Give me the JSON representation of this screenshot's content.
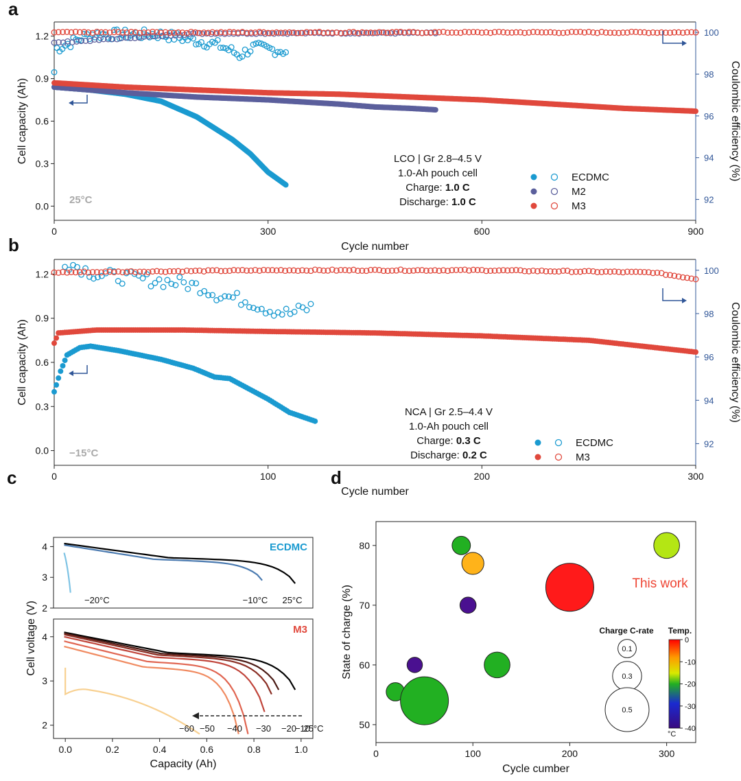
{
  "colors": {
    "ecdmc": "#1a9ad0",
    "m2": "#5b5f9c",
    "m3": "#e0483c",
    "right_axis": "#2f5597",
    "annot": "#a9a9a9",
    "black": "#111111"
  },
  "chart_data": [
    {
      "panel": "a",
      "type": "scatter",
      "xlabel": "Cycle number",
      "ylabel": "Cell capacity (Ah)",
      "y2label": "Coulombic efficiency (%)",
      "xlim": [
        0,
        900
      ],
      "ylim": [
        -0.1,
        1.3
      ],
      "y2lim": [
        91,
        100.5
      ],
      "xticks": [
        0,
        300,
        600,
        900
      ],
      "yticks": [
        0.0,
        0.3,
        0.6,
        0.9,
        1.2
      ],
      "y2ticks": [
        92,
        94,
        96,
        98,
        100
      ],
      "info": [
        {
          "text": "LCO | Gr 2.8–4.5 V"
        },
        {
          "text": "1.0-Ah pouch cell"
        },
        {
          "text": "Charge: ",
          "bold": "1.0 C"
        },
        {
          "text": "Discharge: ",
          "bold": "1.0 C"
        }
      ],
      "temperature": "25°C",
      "series": [
        {
          "name": "ECDMC",
          "capacity_points": [
            [
              0,
              0.84
            ],
            [
              50,
              0.82
            ],
            [
              100,
              0.79
            ],
            [
              150,
              0.74
            ],
            [
              200,
              0.63
            ],
            [
              250,
              0.47
            ],
            [
              275,
              0.37
            ],
            [
              300,
              0.24
            ],
            [
              325,
              0.15
            ]
          ],
          "ce_points": [
            [
              0,
              98.1
            ],
            [
              2,
              99.2
            ],
            [
              50,
              99.9
            ],
            [
              100,
              99.9
            ],
            [
              150,
              99.9
            ],
            [
              200,
              99.6
            ],
            [
              230,
              99.4
            ],
            [
              250,
              99.1
            ],
            [
              260,
              98.9
            ],
            [
              280,
              99.3
            ],
            [
              300,
              99.2
            ],
            [
              325,
              99.1
            ]
          ]
        },
        {
          "name": "M2",
          "capacity_points": [
            [
              0,
              0.84
            ],
            [
              100,
              0.8
            ],
            [
              200,
              0.77
            ],
            [
              300,
              0.75
            ],
            [
              400,
              0.72
            ],
            [
              450,
              0.7
            ],
            [
              500,
              0.69
            ],
            [
              535,
              0.68
            ]
          ],
          "ce_points": [
            [
              0,
              99.5
            ],
            [
              200,
              99.95
            ],
            [
              400,
              99.97
            ],
            [
              535,
              99.97
            ]
          ]
        },
        {
          "name": "M3",
          "capacity_points": [
            [
              0,
              0.87
            ],
            [
              100,
              0.84
            ],
            [
              200,
              0.82
            ],
            [
              300,
              0.8
            ],
            [
              400,
              0.79
            ],
            [
              500,
              0.77
            ],
            [
              600,
              0.75
            ],
            [
              700,
              0.72
            ],
            [
              800,
              0.69
            ],
            [
              900,
              0.67
            ]
          ],
          "ce_points": [
            [
              0,
              100.0
            ],
            [
              900,
              100.0
            ]
          ]
        }
      ]
    },
    {
      "panel": "b",
      "type": "scatter",
      "xlabel": "Cycle number",
      "ylabel": "Cell capacity (Ah)",
      "y2label": "Coulombic efficiency (%)",
      "xlim": [
        0,
        300
      ],
      "ylim": [
        -0.1,
        1.3
      ],
      "y2lim": [
        91,
        100.5
      ],
      "xticks": [
        0,
        100,
        200,
        300
      ],
      "yticks": [
        0.0,
        0.3,
        0.6,
        0.9,
        1.2
      ],
      "y2ticks": [
        92,
        94,
        96,
        98,
        100
      ],
      "info": [
        {
          "text": "NCA | Gr 2.5–4.4 V"
        },
        {
          "text": "1.0-Ah pouch cell"
        },
        {
          "text": "Charge: ",
          "bold": "0.3 C"
        },
        {
          "text": "Discharge: ",
          "bold": "0.2 C"
        }
      ],
      "temperature": "−15°C",
      "series": [
        {
          "name": "ECDMC",
          "capacity_points": [
            [
              0,
              0.4
            ],
            [
              3,
              0.54
            ],
            [
              6,
              0.65
            ],
            [
              12,
              0.7
            ],
            [
              17,
              0.71
            ],
            [
              30,
              0.68
            ],
            [
              50,
              0.62
            ],
            [
              65,
              0.56
            ],
            [
              75,
              0.5
            ],
            [
              82,
              0.49
            ],
            [
              100,
              0.35
            ],
            [
              110,
              0.26
            ],
            [
              122,
              0.2
            ]
          ],
          "ce_points": [
            [
              5,
              100.4
            ],
            [
              20,
              99.8
            ],
            [
              40,
              99.6
            ],
            [
              60,
              99.4
            ],
            [
              70,
              99.2
            ],
            [
              75,
              98.9
            ],
            [
              80,
              98.8
            ],
            [
              90,
              98.6
            ],
            [
              100,
              98.2
            ],
            [
              110,
              98.0
            ],
            [
              120,
              98.3
            ]
          ]
        },
        {
          "name": "M3",
          "capacity_points": [
            [
              0,
              0.73
            ],
            [
              2,
              0.8
            ],
            [
              20,
              0.82
            ],
            [
              60,
              0.82
            ],
            [
              100,
              0.81
            ],
            [
              150,
              0.8
            ],
            [
              200,
              0.78
            ],
            [
              250,
              0.75
            ],
            [
              300,
              0.67
            ]
          ],
          "ce_points": [
            [
              0,
              99.9
            ],
            [
              100,
              100.0
            ],
            [
              200,
              100.0
            ],
            [
              280,
              99.9
            ],
            [
              300,
              99.6
            ]
          ]
        }
      ]
    },
    {
      "panel": "c",
      "type": "line",
      "xlabel": "Capacity (Ah)",
      "ylabel": "Cell voltage (V)",
      "xlim": [
        -0.05,
        1.05
      ],
      "xticks": [
        0.0,
        0.2,
        0.4,
        0.6,
        0.8,
        1.0
      ],
      "upper": {
        "label": "ECDMC",
        "ylim": [
          2,
          4.3
        ],
        "yticks": [
          2,
          3,
          4
        ],
        "curves": [
          {
            "temp": "25°C",
            "end": 0.98,
            "v0": 4.1,
            "vend": 2.8,
            "color": "#000000"
          },
          {
            "temp": "−10°C",
            "end": 0.84,
            "v0": 4.05,
            "vend": 2.9,
            "color": "#4a7ab0"
          },
          {
            "temp": "−20°C",
            "end": 0.02,
            "v0": 3.8,
            "vend": 2.5,
            "color": "#7ec3e4"
          }
        ]
      },
      "lower": {
        "label": "M3",
        "ylim": [
          1.7,
          4.4
        ],
        "yticks": [
          2,
          3,
          4
        ],
        "curves": [
          {
            "temp": "25°C",
            "end": 0.98,
            "v0": 4.1,
            "vend": 2.8,
            "color": "#000000"
          },
          {
            "temp": "−10°C",
            "end": 0.91,
            "v0": 4.08,
            "vend": 2.8,
            "color": "#4a1a14"
          },
          {
            "temp": "−20°C",
            "end": 0.88,
            "v0": 4.05,
            "vend": 2.7,
            "color": "#8a2e24"
          },
          {
            "temp": "−30°C",
            "end": 0.85,
            "v0": 4.0,
            "vend": 2.3,
            "color": "#c0443a"
          },
          {
            "temp": "−40°C",
            "end": 0.78,
            "v0": 3.9,
            "vend": 1.8,
            "color": "#e06450"
          },
          {
            "temp": "−50°C",
            "end": 0.74,
            "v0": 3.78,
            "vend": 1.8,
            "color": "#f08a60"
          },
          {
            "temp": "−60°C",
            "end": 0.57,
            "v0": 3.3,
            "vend": 1.8,
            "color": "#f8d090"
          }
        ]
      },
      "temps_arrow": [
        "−60",
        "−50",
        "−40",
        "−30",
        "−20",
        "−10",
        "25°C"
      ]
    },
    {
      "panel": "d",
      "type": "scatter",
      "xlabel": "Cycle cumber",
      "ylabel": "State of charge (%)",
      "xlim": [
        0,
        330
      ],
      "ylim": [
        47,
        84
      ],
      "xticks": [
        0,
        100,
        200,
        300
      ],
      "yticks": [
        50,
        60,
        70,
        80
      ],
      "bubbles": [
        {
          "cycles": 88,
          "soc": 80,
          "c_rate": 0.1,
          "temp": -20,
          "color": "#22b022"
        },
        {
          "cycles": 100,
          "soc": 77,
          "c_rate": 0.15,
          "temp": -5,
          "color": "#ffb31a"
        },
        {
          "cycles": 200,
          "soc": 73,
          "c_rate": 0.5,
          "temp": 0,
          "color": "#ff1a1a"
        },
        {
          "cycles": 95,
          "soc": 70,
          "c_rate": 0.07,
          "temp": -40,
          "color": "#4a1090"
        },
        {
          "cycles": 40,
          "soc": 60,
          "c_rate": 0.06,
          "temp": -40,
          "color": "#4a1090"
        },
        {
          "cycles": 125,
          "soc": 60,
          "c_rate": 0.2,
          "temp": -20,
          "color": "#22b022"
        },
        {
          "cycles": 20,
          "soc": 55.5,
          "c_rate": 0.1,
          "temp": -20,
          "color": "#22b022"
        },
        {
          "cycles": 50,
          "soc": 54,
          "c_rate": 0.5,
          "temp": -20,
          "color": "#22b022"
        },
        {
          "cycles": 300,
          "soc": 80,
          "c_rate": 0.2,
          "temp": -15,
          "color": "#b4e614"
        }
      ],
      "annotation": "This work",
      "size_legend": {
        "title": "Charge C-rate",
        "values": [
          "0.1",
          "0.3",
          "0.5"
        ]
      },
      "colorbar": {
        "title": "Temp.",
        "unit": "°C",
        "ticks": [
          "0",
          "-10",
          "-20",
          "-30",
          "-40"
        ]
      }
    }
  ],
  "panel_labels": [
    "a",
    "b",
    "c",
    "d"
  ]
}
